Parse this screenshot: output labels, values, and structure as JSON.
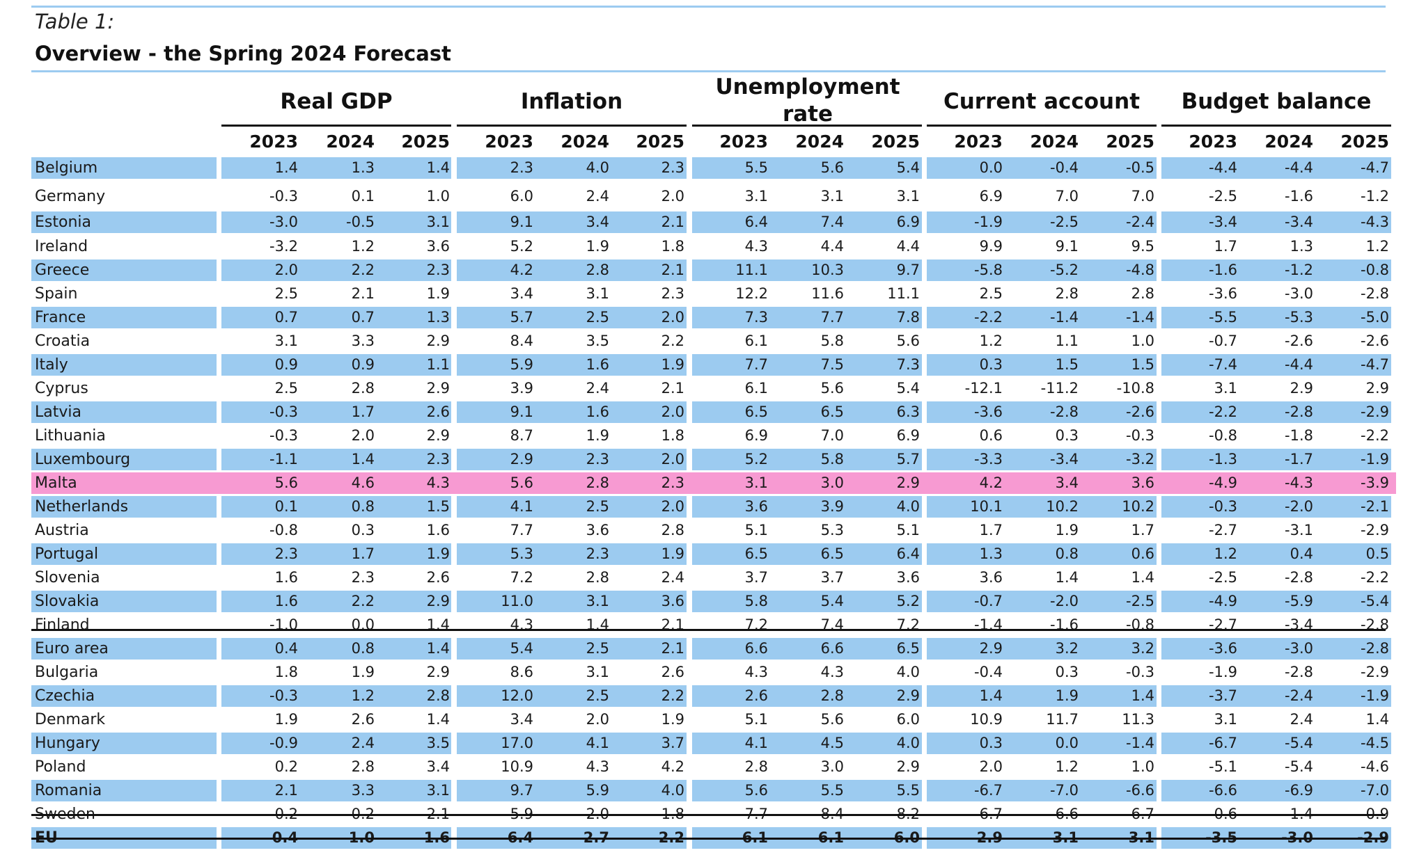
{
  "table": {
    "label": "Table 1:",
    "title": "Overview - the Spring 2024 Forecast"
  },
  "groups": [
    "Real GDP",
    "Inflation",
    "Unemployment rate",
    "Current account",
    "Budget balance"
  ],
  "years": [
    "2023",
    "2024",
    "2025"
  ],
  "colors": {
    "row_highlight": "#9ccbf0",
    "malta_highlight": "#f79ad2",
    "rule_light": "#9ccbf0",
    "rule_dark": "#111111"
  },
  "rows": [
    {
      "country": "Belgium",
      "values": [
        "1.4",
        "1.3",
        "1.4",
        "2.3",
        "4.0",
        "2.3",
        "5.5",
        "5.6",
        "5.4",
        "0.0",
        "-0.4",
        "-0.5",
        "-4.4",
        "-4.4",
        "-4.7"
      ],
      "style": "blue"
    },
    {
      "country": "Germany",
      "values": [
        "-0.3",
        "0.1",
        "1.0",
        "6.0",
        "2.4",
        "2.0",
        "3.1",
        "3.1",
        "3.1",
        "6.9",
        "7.0",
        "7.0",
        "-2.5",
        "-1.6",
        "-1.2"
      ],
      "style": "white"
    },
    {
      "country": "Estonia",
      "values": [
        "-3.0",
        "-0.5",
        "3.1",
        "9.1",
        "3.4",
        "2.1",
        "6.4",
        "7.4",
        "6.9",
        "-1.9",
        "-2.5",
        "-2.4",
        "-3.4",
        "-3.4",
        "-4.3"
      ],
      "style": "blue"
    },
    {
      "country": "Ireland",
      "values": [
        "-3.2",
        "1.2",
        "3.6",
        "5.2",
        "1.9",
        "1.8",
        "4.3",
        "4.4",
        "4.4",
        "9.9",
        "9.1",
        "9.5",
        "1.7",
        "1.3",
        "1.2"
      ],
      "style": "white"
    },
    {
      "country": "Greece",
      "values": [
        "2.0",
        "2.2",
        "2.3",
        "4.2",
        "2.8",
        "2.1",
        "11.1",
        "10.3",
        "9.7",
        "-5.8",
        "-5.2",
        "-4.8",
        "-1.6",
        "-1.2",
        "-0.8"
      ],
      "style": "blue"
    },
    {
      "country": "Spain",
      "values": [
        "2.5",
        "2.1",
        "1.9",
        "3.4",
        "3.1",
        "2.3",
        "12.2",
        "11.6",
        "11.1",
        "2.5",
        "2.8",
        "2.8",
        "-3.6",
        "-3.0",
        "-2.8"
      ],
      "style": "white"
    },
    {
      "country": "France",
      "values": [
        "0.7",
        "0.7",
        "1.3",
        "5.7",
        "2.5",
        "2.0",
        "7.3",
        "7.7",
        "7.8",
        "-2.2",
        "-1.4",
        "-1.4",
        "-5.5",
        "-5.3",
        "-5.0"
      ],
      "style": "blue"
    },
    {
      "country": "Croatia",
      "values": [
        "3.1",
        "3.3",
        "2.9",
        "8.4",
        "3.5",
        "2.2",
        "6.1",
        "5.8",
        "5.6",
        "1.2",
        "1.1",
        "1.0",
        "-0.7",
        "-2.6",
        "-2.6"
      ],
      "style": "white"
    },
    {
      "country": "Italy",
      "values": [
        "0.9",
        "0.9",
        "1.1",
        "5.9",
        "1.6",
        "1.9",
        "7.7",
        "7.5",
        "7.3",
        "0.3",
        "1.5",
        "1.5",
        "-7.4",
        "-4.4",
        "-4.7"
      ],
      "style": "blue"
    },
    {
      "country": "Cyprus",
      "values": [
        "2.5",
        "2.8",
        "2.9",
        "3.9",
        "2.4",
        "2.1",
        "6.1",
        "5.6",
        "5.4",
        "-12.1",
        "-11.2",
        "-10.8",
        "3.1",
        "2.9",
        "2.9"
      ],
      "style": "white"
    },
    {
      "country": "Latvia",
      "values": [
        "-0.3",
        "1.7",
        "2.6",
        "9.1",
        "1.6",
        "2.0",
        "6.5",
        "6.5",
        "6.3",
        "-3.6",
        "-2.8",
        "-2.6",
        "-2.2",
        "-2.8",
        "-2.9"
      ],
      "style": "blue"
    },
    {
      "country": "Lithuania",
      "values": [
        "-0.3",
        "2.0",
        "2.9",
        "8.7",
        "1.9",
        "1.8",
        "6.9",
        "7.0",
        "6.9",
        "0.6",
        "0.3",
        "-0.3",
        "-0.8",
        "-1.8",
        "-2.2"
      ],
      "style": "white"
    },
    {
      "country": "Luxembourg",
      "values": [
        "-1.1",
        "1.4",
        "2.3",
        "2.9",
        "2.3",
        "2.0",
        "5.2",
        "5.8",
        "5.7",
        "-3.3",
        "-3.4",
        "-3.2",
        "-1.3",
        "-1.7",
        "-1.9"
      ],
      "style": "blue"
    },
    {
      "country": "Malta",
      "values": [
        "5.6",
        "4.6",
        "4.3",
        "5.6",
        "2.8",
        "2.3",
        "3.1",
        "3.0",
        "2.9",
        "4.2",
        "3.4",
        "3.6",
        "-4.9",
        "-4.3",
        "-3.9"
      ],
      "style": "pink"
    },
    {
      "country": "Netherlands",
      "values": [
        "0.1",
        "0.8",
        "1.5",
        "4.1",
        "2.5",
        "2.0",
        "3.6",
        "3.9",
        "4.0",
        "10.1",
        "10.2",
        "10.2",
        "-0.3",
        "-2.0",
        "-2.1"
      ],
      "style": "blue"
    },
    {
      "country": "Austria",
      "values": [
        "-0.8",
        "0.3",
        "1.6",
        "7.7",
        "3.6",
        "2.8",
        "5.1",
        "5.3",
        "5.1",
        "1.7",
        "1.9",
        "1.7",
        "-2.7",
        "-3.1",
        "-2.9"
      ],
      "style": "white"
    },
    {
      "country": "Portugal",
      "values": [
        "2.3",
        "1.7",
        "1.9",
        "5.3",
        "2.3",
        "1.9",
        "6.5",
        "6.5",
        "6.4",
        "1.3",
        "0.8",
        "0.6",
        "1.2",
        "0.4",
        "0.5"
      ],
      "style": "blue"
    },
    {
      "country": "Slovenia",
      "values": [
        "1.6",
        "2.3",
        "2.6",
        "7.2",
        "2.8",
        "2.4",
        "3.7",
        "3.7",
        "3.6",
        "3.6",
        "1.4",
        "1.4",
        "-2.5",
        "-2.8",
        "-2.2"
      ],
      "style": "white"
    },
    {
      "country": "Slovakia",
      "values": [
        "1.6",
        "2.2",
        "2.9",
        "11.0",
        "3.1",
        "3.6",
        "5.8",
        "5.4",
        "5.2",
        "-0.7",
        "-2.0",
        "-2.5",
        "-4.9",
        "-5.9",
        "-5.4"
      ],
      "style": "blue"
    },
    {
      "country": "Finland",
      "values": [
        "-1.0",
        "0.0",
        "1.4",
        "4.3",
        "1.4",
        "2.1",
        "7.2",
        "7.4",
        "7.2",
        "-1.4",
        "-1.6",
        "-0.8",
        "-2.7",
        "-3.4",
        "-2.8"
      ],
      "style": "white"
    },
    {
      "country": "Euro area",
      "values": [
        "0.4",
        "0.8",
        "1.4",
        "5.4",
        "2.5",
        "2.1",
        "6.6",
        "6.6",
        "6.5",
        "2.9",
        "3.2",
        "3.2",
        "-3.6",
        "-3.0",
        "-2.8"
      ],
      "style": "blue"
    },
    {
      "country": "Bulgaria",
      "values": [
        "1.8",
        "1.9",
        "2.9",
        "8.6",
        "3.1",
        "2.6",
        "4.3",
        "4.3",
        "4.0",
        "-0.4",
        "0.3",
        "-0.3",
        "-1.9",
        "-2.8",
        "-2.9"
      ],
      "style": "white"
    },
    {
      "country": "Czechia",
      "values": [
        "-0.3",
        "1.2",
        "2.8",
        "12.0",
        "2.5",
        "2.2",
        "2.6",
        "2.8",
        "2.9",
        "1.4",
        "1.9",
        "1.4",
        "-3.7",
        "-2.4",
        "-1.9"
      ],
      "style": "blue"
    },
    {
      "country": "Denmark",
      "values": [
        "1.9",
        "2.6",
        "1.4",
        "3.4",
        "2.0",
        "1.9",
        "5.1",
        "5.6",
        "6.0",
        "10.9",
        "11.7",
        "11.3",
        "3.1",
        "2.4",
        "1.4"
      ],
      "style": "white"
    },
    {
      "country": "Hungary",
      "values": [
        "-0.9",
        "2.4",
        "3.5",
        "17.0",
        "4.1",
        "3.7",
        "4.1",
        "4.5",
        "4.0",
        "0.3",
        "0.0",
        "-1.4",
        "-6.7",
        "-5.4",
        "-4.5"
      ],
      "style": "blue"
    },
    {
      "country": "Poland",
      "values": [
        "0.2",
        "2.8",
        "3.4",
        "10.9",
        "4.3",
        "4.2",
        "2.8",
        "3.0",
        "2.9",
        "2.0",
        "1.2",
        "1.0",
        "-5.1",
        "-5.4",
        "-4.6"
      ],
      "style": "white"
    },
    {
      "country": "Romania",
      "values": [
        "2.1",
        "3.3",
        "3.1",
        "9.7",
        "5.9",
        "4.0",
        "5.6",
        "5.5",
        "5.5",
        "-6.7",
        "-7.0",
        "-6.6",
        "-6.6",
        "-6.9",
        "-7.0"
      ],
      "style": "blue"
    },
    {
      "country": "Sweden",
      "values": [
        "-0.2",
        "0.2",
        "2.1",
        "5.9",
        "2.0",
        "1.8",
        "7.7",
        "8.4",
        "8.2",
        "6.7",
        "6.6",
        "6.7",
        "-0.6",
        "-1.4",
        "-0.9"
      ],
      "style": "white"
    },
    {
      "country": "EU",
      "values": [
        "0.4",
        "1.0",
        "1.6",
        "6.4",
        "2.7",
        "2.2",
        "6.1",
        "6.1",
        "6.0",
        "2.9",
        "3.1",
        "3.1",
        "-3.5",
        "-3.0",
        "-2.9"
      ],
      "style": "blue",
      "bold": true
    }
  ]
}
